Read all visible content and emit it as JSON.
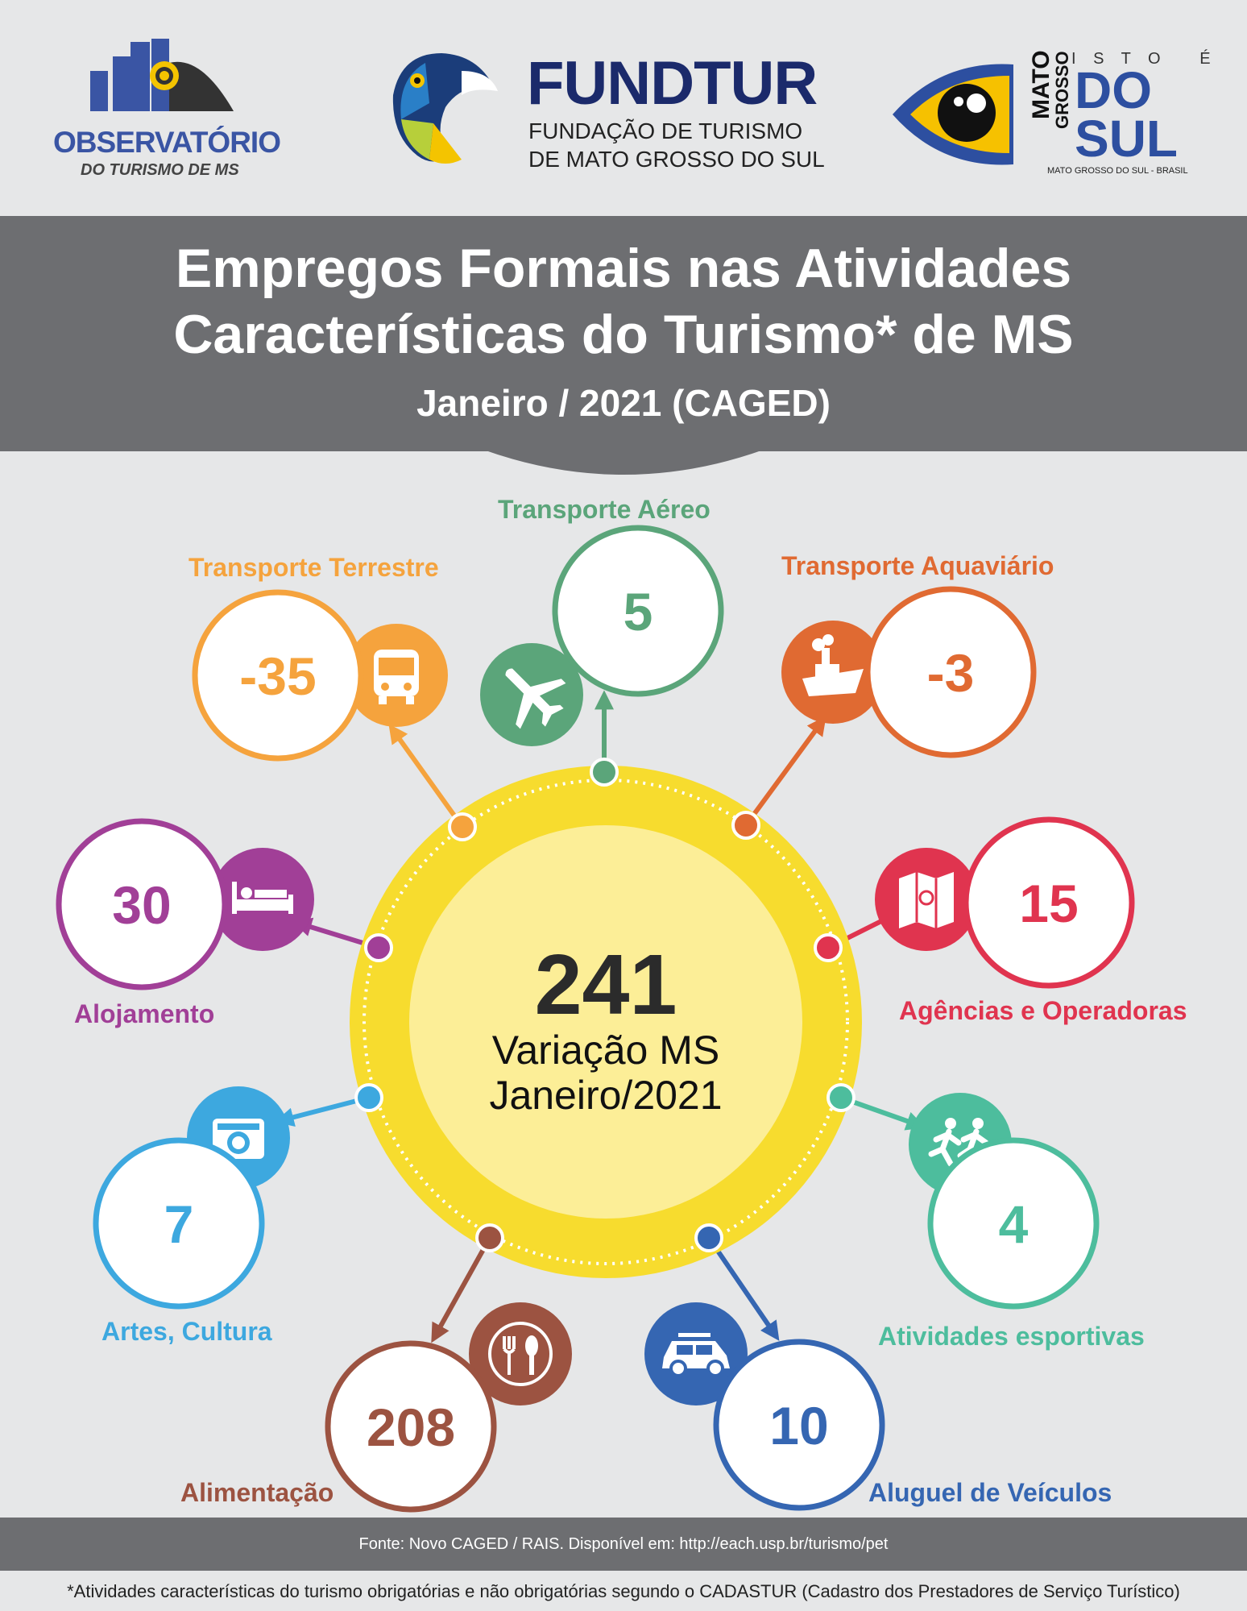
{
  "logos": {
    "observatorio": {
      "line1": "OBSERVATÓRIO",
      "line2": "DO TURISMO DE MS"
    },
    "fundtur": {
      "name": "FUNDTUR",
      "line1": "FUNDAÇÃO DE TURISMO",
      "line2": "DE MATO GROSSO DO SUL"
    },
    "ms": {
      "top": "I S T O   É",
      "mato": "MATO",
      "grosso": "GROSSO",
      "do": "DO",
      "sul": "SUL",
      "sub": "MATO GROSSO DO SUL - BRASIL"
    }
  },
  "title": {
    "line1": "Empregos Formais nas Atividades",
    "line2": "Características do Turismo* de MS",
    "subtitle": "Janeiro / 2021 (CAGED)"
  },
  "center": {
    "value": "241",
    "line1": "Variação MS",
    "line2": "Janeiro/2021"
  },
  "categories": [
    {
      "id": "transporte-terrestre",
      "label": "Transporte Terrestre",
      "value": "-35",
      "color": "#f5a33d",
      "icon": "bus-icon"
    },
    {
      "id": "transporte-aereo",
      "label": "Transporte Aéreo",
      "value": "5",
      "color": "#5ba57a",
      "icon": "airplane-icon"
    },
    {
      "id": "transporte-aquaviario",
      "label": "Transporte Aquaviário",
      "value": "-3",
      "color": "#e06a32",
      "icon": "ship-icon"
    },
    {
      "id": "alojamento",
      "label": "Alojamento",
      "value": "30",
      "color": "#a13f97",
      "icon": "bed-icon"
    },
    {
      "id": "agencias-operadoras",
      "label": "Agências e Operadoras",
      "value": "15",
      "color": "#e0344f",
      "icon": "map-icon"
    },
    {
      "id": "artes-cultura",
      "label": "Artes, Cultura",
      "value": "7",
      "color": "#3da8df",
      "icon": "camera-icon"
    },
    {
      "id": "atividades-esportivas",
      "label": "Atividades esportivas",
      "value": "4",
      "color": "#4dbd9d",
      "icon": "runners-icon"
    },
    {
      "id": "alimentacao",
      "label": "Alimentação",
      "value": "208",
      "color": "#9c5341",
      "icon": "cutlery-icon"
    },
    {
      "id": "aluguel-veiculos",
      "label": "Aluguel de Veículos",
      "value": "10",
      "color": "#3566b2",
      "icon": "car-icon"
    }
  ],
  "footer": {
    "source": "Fonte: Novo CAGED / RAIS. Disponível em: http://each.usp.br/turismo/pet",
    "note": "*Atividades características do turismo obrigatórias e não obrigatórias segundo o CADASTUR (Cadastro dos Prestadores de Serviço Turístico)"
  }
}
